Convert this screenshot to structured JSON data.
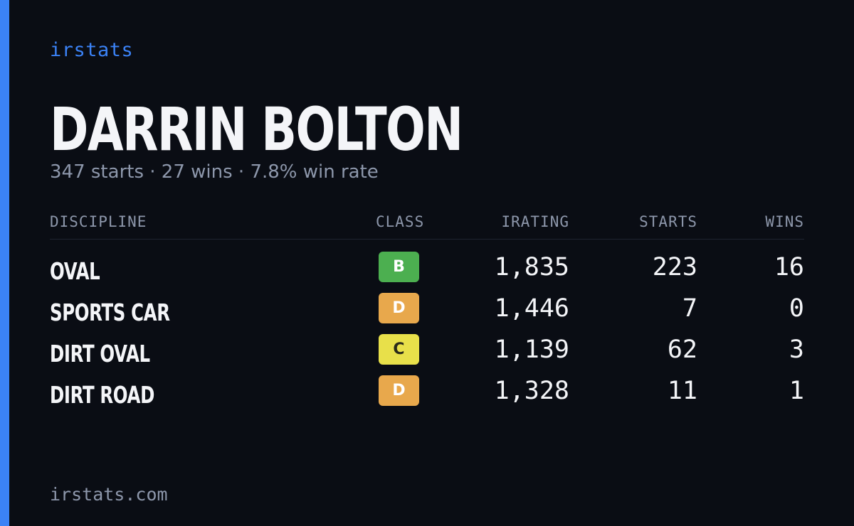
{
  "brand": "irstats",
  "driver": {
    "name": "DARRIN BOLTON",
    "summary": "347 starts · 27 wins · 7.8% win rate"
  },
  "table": {
    "headers": {
      "discipline": "DISCIPLINE",
      "class": "CLASS",
      "irating": "IRATING",
      "starts": "STARTS",
      "wins": "WINS"
    },
    "rows": [
      {
        "discipline": "OVAL",
        "class": "B",
        "class_color": "#4caf50",
        "class_text_color": "#ffffff",
        "irating": "1,835",
        "starts": "223",
        "wins": "16"
      },
      {
        "discipline": "SPORTS CAR",
        "class": "D",
        "class_color": "#e8a84c",
        "class_text_color": "#ffffff",
        "irating": "1,446",
        "starts": "7",
        "wins": "0"
      },
      {
        "discipline": "DIRT OVAL",
        "class": "C",
        "class_color": "#e8e04a",
        "class_text_color": "#2a2a1a",
        "irating": "1,139",
        "starts": "62",
        "wins": "3"
      },
      {
        "discipline": "DIRT ROAD",
        "class": "D",
        "class_color": "#e8a84c",
        "class_text_color": "#ffffff",
        "irating": "1,328",
        "starts": "11",
        "wins": "1"
      }
    ]
  },
  "footer": "irstats.com",
  "colors": {
    "accent": "#3b82f6",
    "background": "#0a0d14",
    "muted": "#8d97ab",
    "text": "#f4f5f8"
  }
}
